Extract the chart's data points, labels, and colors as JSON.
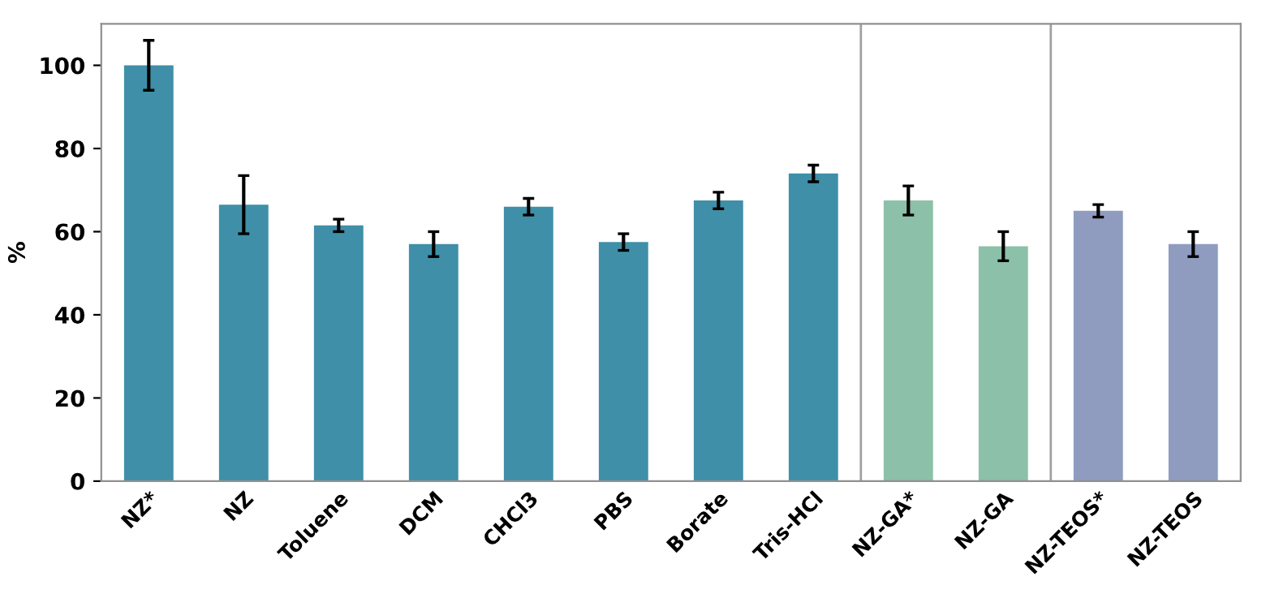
{
  "chart_data": {
    "type": "bar",
    "ylabel": "%",
    "categories": [
      "NZ*",
      "NZ",
      "Toluene",
      "DCM",
      "CHCl3",
      "PBS",
      "Borate",
      "Tris-HCl",
      "NZ-GA*",
      "NZ-GA",
      "NZ-TEOS*",
      "NZ-TEOS"
    ],
    "values": [
      100,
      66.5,
      61.5,
      57,
      66,
      57.5,
      67.5,
      74,
      67.5,
      56.5,
      65,
      57
    ],
    "errors": [
      6,
      7,
      1.5,
      3,
      2,
      2,
      2,
      2,
      3.5,
      3.5,
      1.5,
      3
    ],
    "colors": [
      "#3f8fa8",
      "#3f8fa8",
      "#3f8fa8",
      "#3f8fa8",
      "#3f8fa8",
      "#3f8fa8",
      "#3f8fa8",
      "#3f8fa8",
      "#8cc0a8",
      "#8cc0a8",
      "#8f9cc0",
      "#8f9cc0"
    ],
    "ylim": [
      0,
      110
    ],
    "yticks": [
      0,
      20,
      40,
      60,
      80,
      100
    ],
    "grid": false,
    "legend": false
  }
}
